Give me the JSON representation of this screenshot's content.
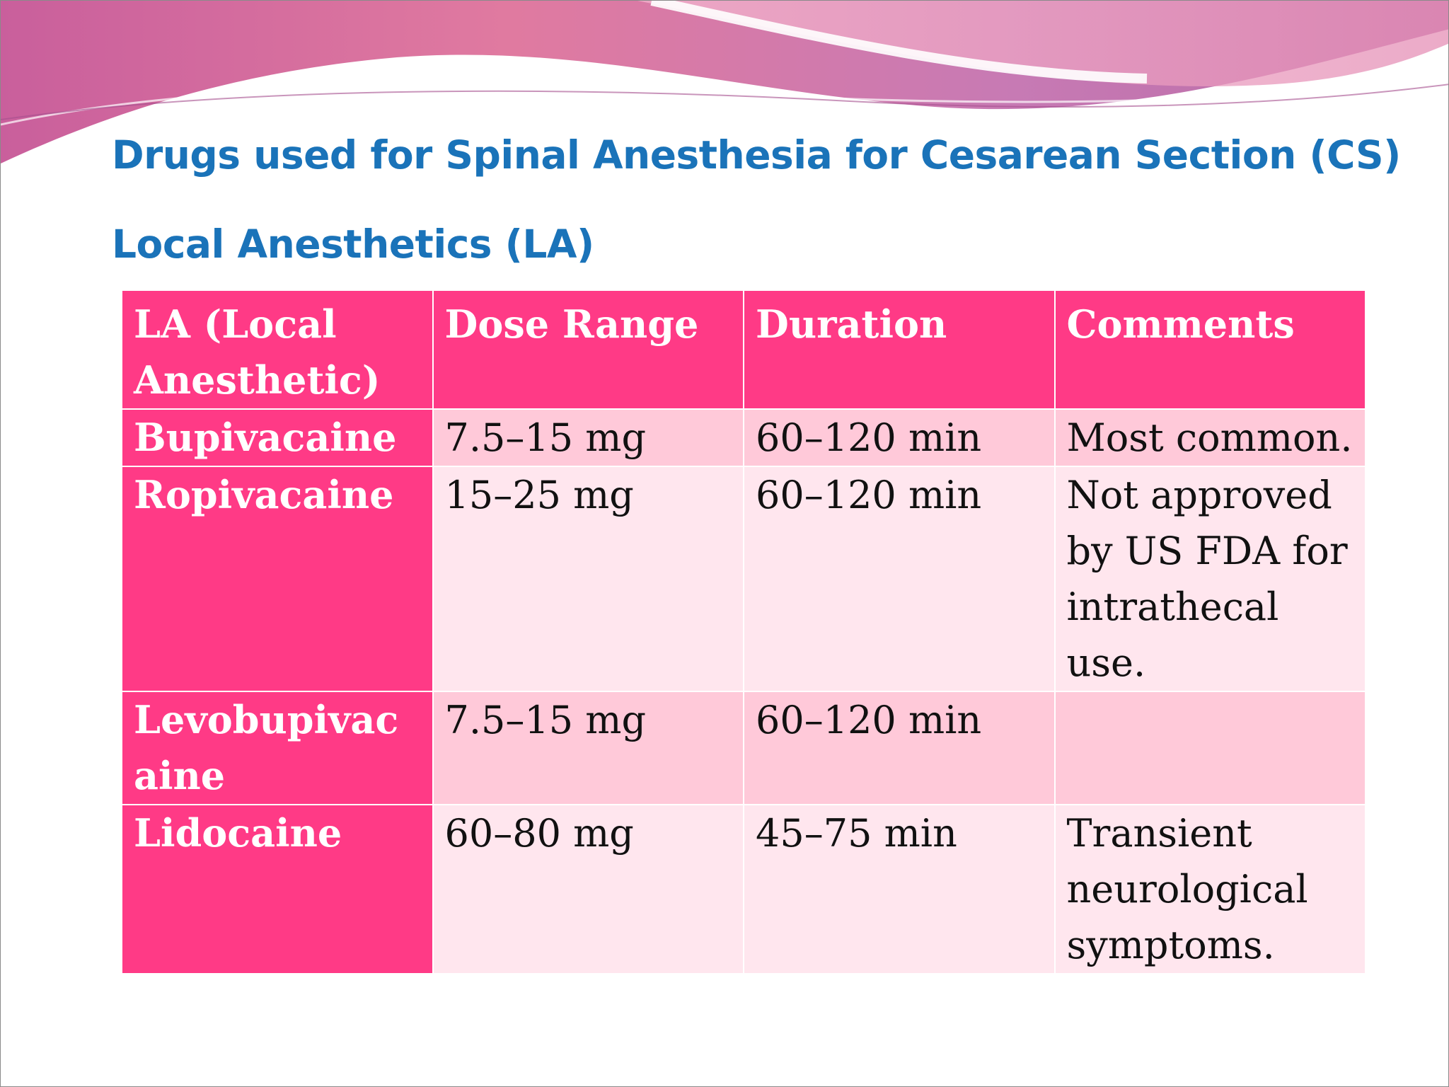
{
  "slide": {
    "title": "Drugs used for Spinal Anesthesia for Cesarean Section (CS)",
    "subtitle": "Local Anesthetics (LA)"
  },
  "colors": {
    "title": "#1a73b9",
    "header_fill": "#ff3a86",
    "row_fill_dark": "#ffc9d9",
    "row_fill_light": "#ffe6ee",
    "banner_pink": "#d9689c",
    "banner_purple": "#b35c9e"
  },
  "table": {
    "headers": [
      "LA (Local Anesthetic)",
      "Dose Range",
      "Duration",
      "Comments"
    ],
    "rows": [
      {
        "drug": "Bupivacaine",
        "dose": "7.5–15 mg",
        "duration": "60–120 min",
        "comments": "Most common."
      },
      {
        "drug": "Ropivacaine",
        "dose": "15–25 mg",
        "duration": "60–120 min",
        "comments": "Not approved by US FDA for intrathecal use."
      },
      {
        "drug": "Levobupivacaine",
        "dose": "7.5–15 mg",
        "duration": "60–120 min",
        "comments": ""
      },
      {
        "drug": "Lidocaine",
        "dose": "60–80 mg",
        "duration": "45–75 min",
        "comments": "Transient neurological symptoms."
      }
    ]
  }
}
